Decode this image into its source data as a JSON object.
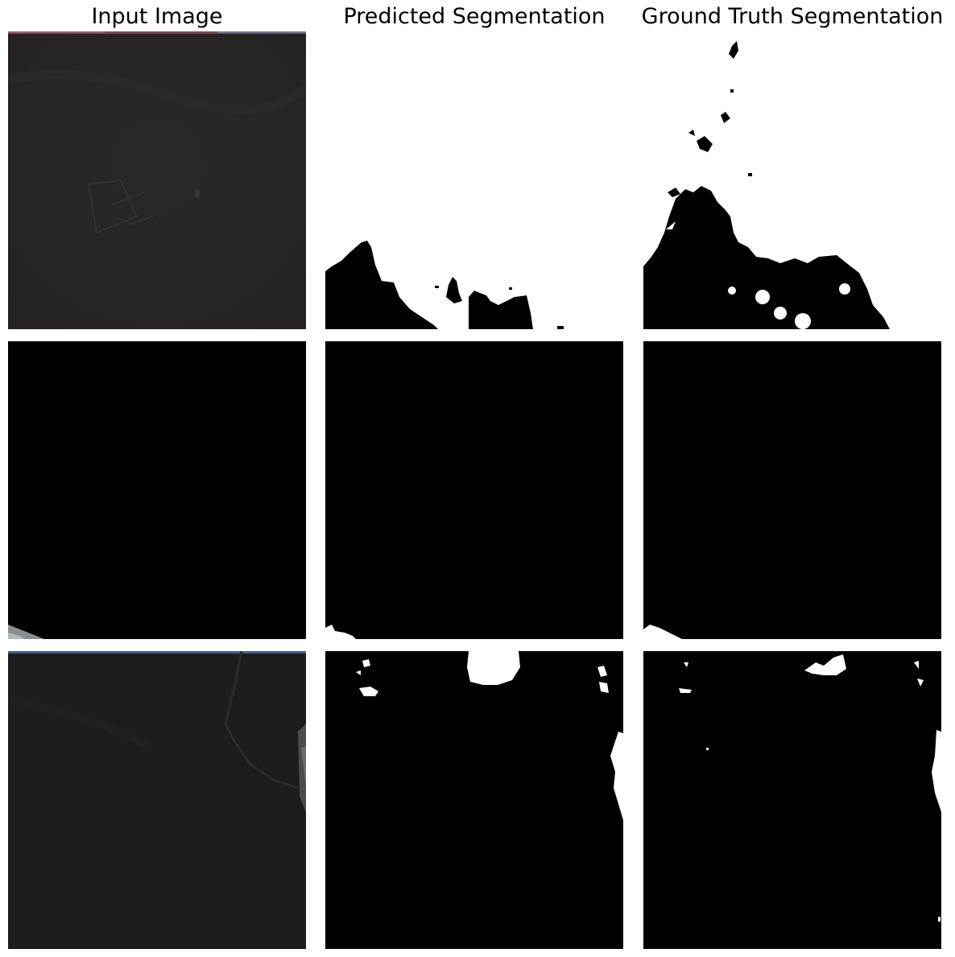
{
  "figure": {
    "columns": [
      "Input Image",
      "Predicted Segmentation",
      "Ground Truth Segmentation"
    ],
    "rows": [
      {
        "input": "dark satellite scene with red/blue band at top edge",
        "predicted": "mostly white mask, black region along bottom",
        "ground_truth": "white mask with large black region lower-left"
      },
      {
        "input": "black (no-data) scene with grey sliver bottom-left",
        "predicted": "black mask, tiny white patch bottom-left",
        "ground_truth": "black mask, small white patch bottom-left"
      },
      {
        "input": "dark satellite scene with river and bright right edge",
        "predicted": "black mask, white blobs top and right edge",
        "ground_truth": "black mask, scattered white specks top and right edge"
      }
    ]
  },
  "colors": {
    "mask_foreground": "#ffffff",
    "mask_background": "#000000",
    "input_dark": "#2a2627",
    "input_dark_blue": "#1b1d20"
  }
}
